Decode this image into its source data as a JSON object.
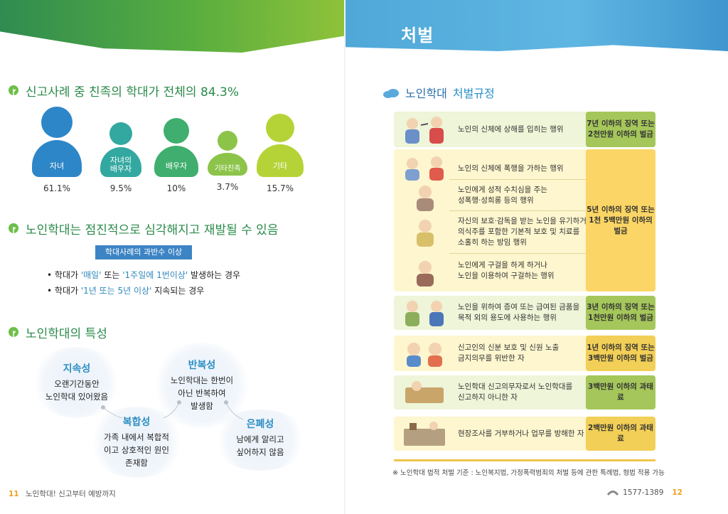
{
  "left": {
    "section1_title": "신고사례 중 친족의 학대가 전체의 84.3%",
    "people": [
      {
        "label": "자녀",
        "pct": "61.1%",
        "color": "#2d86c7",
        "head_color": "#2d86c7"
      },
      {
        "label": "자녀의\n배우자",
        "pct": "9.5%",
        "color": "#33a8a0",
        "head_color": "#33a8a0"
      },
      {
        "label": "배우자",
        "pct": "10%",
        "color": "#3fae6e",
        "head_color": "#3fae6e"
      },
      {
        "label": "기타친족",
        "pct": "3.7%",
        "color": "#8cc44a",
        "head_color": "#8cc44a"
      },
      {
        "label": "기타",
        "pct": "15.7%",
        "color": "#b5d336",
        "head_color": "#b5d336"
      }
    ],
    "section2_title": "노인학대는 점진적으로 심각해지고 재발될 수 있음",
    "pill": "학대사례의 과반수 이상",
    "bullet1_pre": "학대가 ",
    "bullet1_hl1": "'매일'",
    "bullet1_mid": " 또는 ",
    "bullet1_hl2": "'1주일에 1번이상'",
    "bullet1_post": " 발생하는 경우",
    "bullet2_pre": "학대가 ",
    "bullet2_hl": "'1년 또는 5년 이상'",
    "bullet2_post": " 지속되는 경우",
    "section3_title": "노인학대의 특성",
    "traits": {
      "t1_title": "지속성",
      "t1_l1": "오랜기간동안",
      "t1_l2": "노인학대 있어왔음",
      "t2_title": "반복성",
      "t2_l1": "노인학대는 한번이",
      "t2_l2": "아닌 반복하여",
      "t2_l3": "발생함",
      "t3_title": "복합성",
      "t3_l1": "가족 내에서 복합적",
      "t3_l2": "이고 상호적인 원인",
      "t3_l3": "존재함",
      "t4_title": "은폐성",
      "t4_l1": "남에게 알리고",
      "t4_l2": "싶어하지 않음"
    },
    "footer_num": "11",
    "footer_text": "노인학대! 신고부터 예방까지"
  },
  "right": {
    "header": "처벌",
    "title_a": "노인학대",
    "title_b": "처벌규정",
    "rows": {
      "r1_text": "노인의 신체에 상해를 입히는 행위",
      "r1_pen_l1": "7년 이하의 징역 또는",
      "r1_pen_l2": "2천만원 이하의 벌금",
      "r2a_text": "노인의 신체에 폭행을 가하는 행위",
      "r2b_l1": "노인에게 성적 수치심을 주는",
      "r2b_l2": "성폭행·성희롱 등의 행위",
      "r2c_l1": "자신의 보호·감독을 받는 노인을 유기하거나",
      "r2c_l2": "의식주를 포함한 기본적 보호 및 치료를",
      "r2c_l3": "소홀히 하는 방임 행위",
      "r2d_l1": "노인에게 구걸을 하게 하거나",
      "r2d_l2": "노인을 이용하여 구걸하는 행위",
      "r2_pen_l1": "5년 이하의 징역 또는",
      "r2_pen_l2": "1천 5백만원 이하의 벌금",
      "r3_l1": "노인을 위하여 증여 또는 급여된 금품을",
      "r3_l2": "목적 외의 용도에 사용하는 행위",
      "r3_pen_l1": "3년 이하의 징역 또는",
      "r3_pen_l2": "1천만원 이하의 벌금",
      "r4_l1": "신고인의 신분 보호 및 신원 노출",
      "r4_l2": "금지의무를 위반한 자",
      "r4_pen_l1": "1년 이하의 징역 또는",
      "r4_pen_l2": "3백만원 이하의 벌금",
      "r5_l1": "노인학대 신고의무자로서 노인학대를",
      "r5_l2": "신고하지 아니한 자",
      "r5_pen": "3백만원 이하의 과태료",
      "r6_text": "현장조사를 거부하거나 업무를 방해한 자",
      "r6_pen": "2백만원 이하의 과태료"
    },
    "note": "※ 노인학대 법적 처벌 기준 : 노인복지법, 가정폭력범죄의 처벌 등에 관한 특례법, 형법 적용 가능",
    "footer_phone": "1577-1389",
    "footer_num": "12"
  }
}
